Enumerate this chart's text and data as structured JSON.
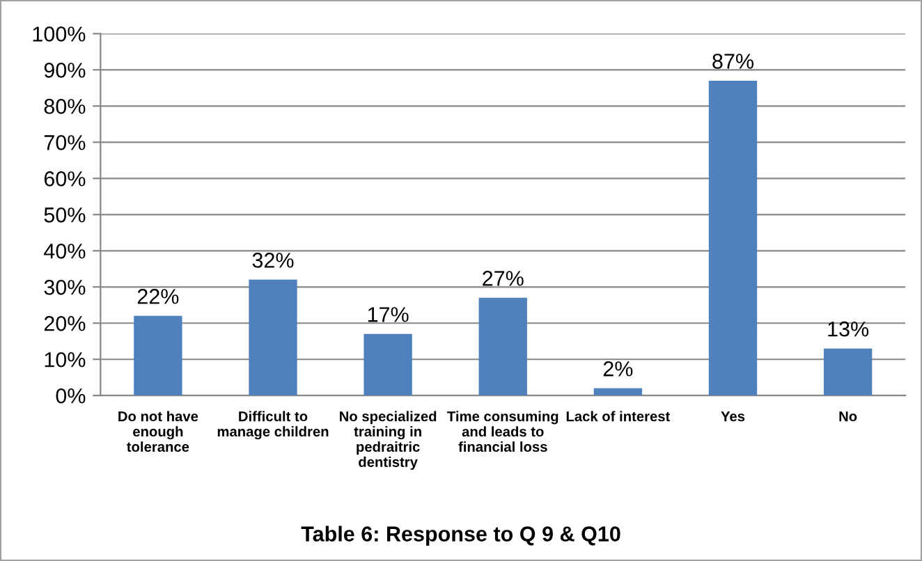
{
  "chart_data": {
    "type": "bar",
    "title": "Table 6: Response to Q 9 & Q10",
    "categories": [
      "Do not have\nenough\ntolerance",
      "Difficult to\nmanage children",
      "No specialized\ntraining in\npedraitric\ndentistry",
      "Time consuming\nand leads to\nfinancial loss",
      "Lack of interest",
      "Yes",
      "No"
    ],
    "values": [
      22,
      32,
      17,
      27,
      2,
      87,
      13
    ],
    "value_labels": [
      "22%",
      "32%",
      "17%",
      "27%",
      "2%",
      "87%",
      "13%"
    ],
    "color": "#4f81bd",
    "ylim": [
      0,
      100
    ],
    "yticks": [
      {
        "value": 0,
        "label": "0%"
      },
      {
        "value": 10,
        "label": "10%"
      },
      {
        "value": 20,
        "label": "20%"
      },
      {
        "value": 30,
        "label": "30%"
      },
      {
        "value": 40,
        "label": "40%"
      },
      {
        "value": 50,
        "label": "50%"
      },
      {
        "value": 60,
        "label": "60%"
      },
      {
        "value": 70,
        "label": "70%"
      },
      {
        "value": 80,
        "label": "80%"
      },
      {
        "value": 90,
        "label": "90%"
      },
      {
        "value": 100,
        "label": "100%"
      }
    ],
    "grid": "y",
    "legend": false
  }
}
